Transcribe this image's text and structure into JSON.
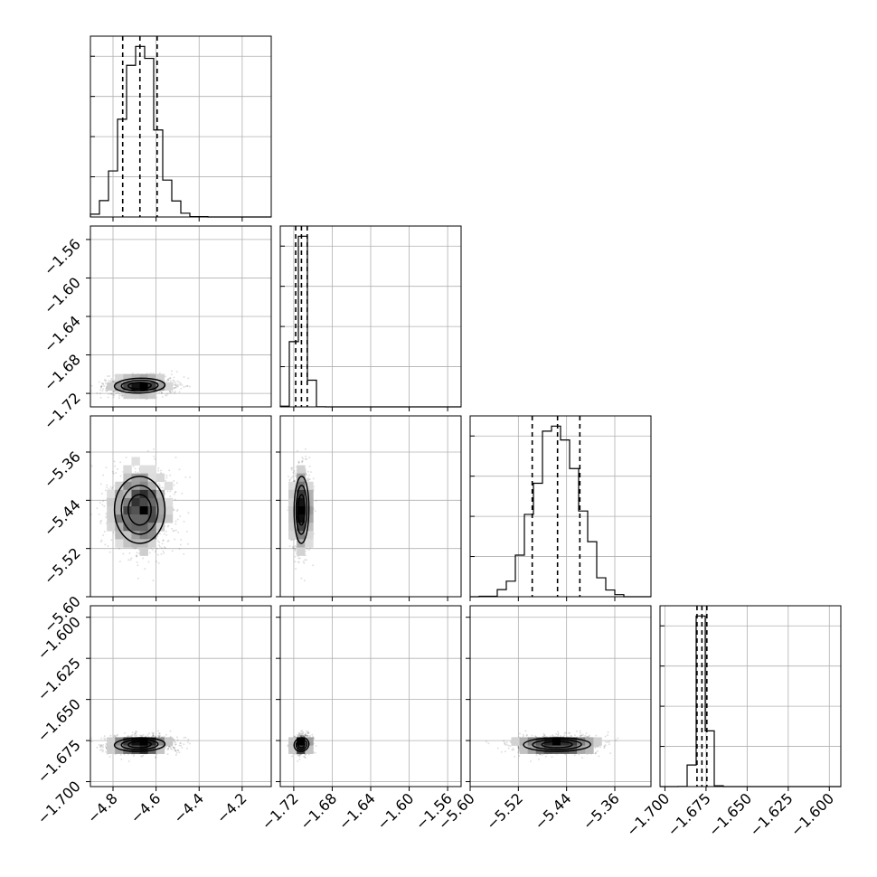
{
  "chart_data": {
    "type": "corner",
    "grid": true,
    "parameters": [
      {
        "index": 0,
        "ticks": [
          -4.8,
          -4.6,
          -4.4,
          -4.2
        ],
        "tick_labels": [
          "−4.8",
          "−4.6",
          "−4.4",
          "−4.2"
        ],
        "range": [
          -4.905,
          -4.065
        ],
        "center": -4.675,
        "sigma": 0.075,
        "skew": 0.9,
        "quantiles": [
          -4.755,
          -4.675,
          -4.595
        ]
      },
      {
        "index": 1,
        "ticks": [
          -1.72,
          -1.68,
          -1.64,
          -1.6,
          -1.56
        ],
        "tick_labels": [
          "−1.72",
          "−1.68",
          "−1.64",
          "−1.60",
          "−1.56"
        ],
        "range": [
          -1.734,
          -1.546
        ],
        "center": -1.712,
        "sigma": 0.0055,
        "skew": 1.6,
        "quantiles": [
          -1.718,
          -1.712,
          -1.706
        ]
      },
      {
        "index": 2,
        "ticks": [
          -5.6,
          -5.52,
          -5.44,
          -5.36
        ],
        "tick_labels": [
          "−5.60",
          "−5.52",
          "−5.44",
          "−5.36"
        ],
        "range": [
          -5.6,
          -5.3
        ],
        "center": -5.455,
        "sigma": 0.035,
        "skew": 0.1,
        "quantiles": [
          -5.497,
          -5.455,
          -5.418
        ]
      },
      {
        "index": 3,
        "ticks": [
          -1.7,
          -1.675,
          -1.65,
          -1.625,
          -1.6
        ],
        "tick_labels": [
          "−1.700",
          "−1.675",
          "−1.650",
          "−1.625",
          "−1.600"
        ],
        "range": [
          -1.703,
          -1.593
        ],
        "center": -1.6775,
        "sigma": 0.0028,
        "skew": 1.2,
        "quantiles": [
          -1.6805,
          -1.6775,
          -1.6745
        ]
      }
    ],
    "hist_bins": 20,
    "samples": 2500,
    "contour_levels": [
      0.12,
      0.35,
      0.62,
      0.92
    ]
  }
}
